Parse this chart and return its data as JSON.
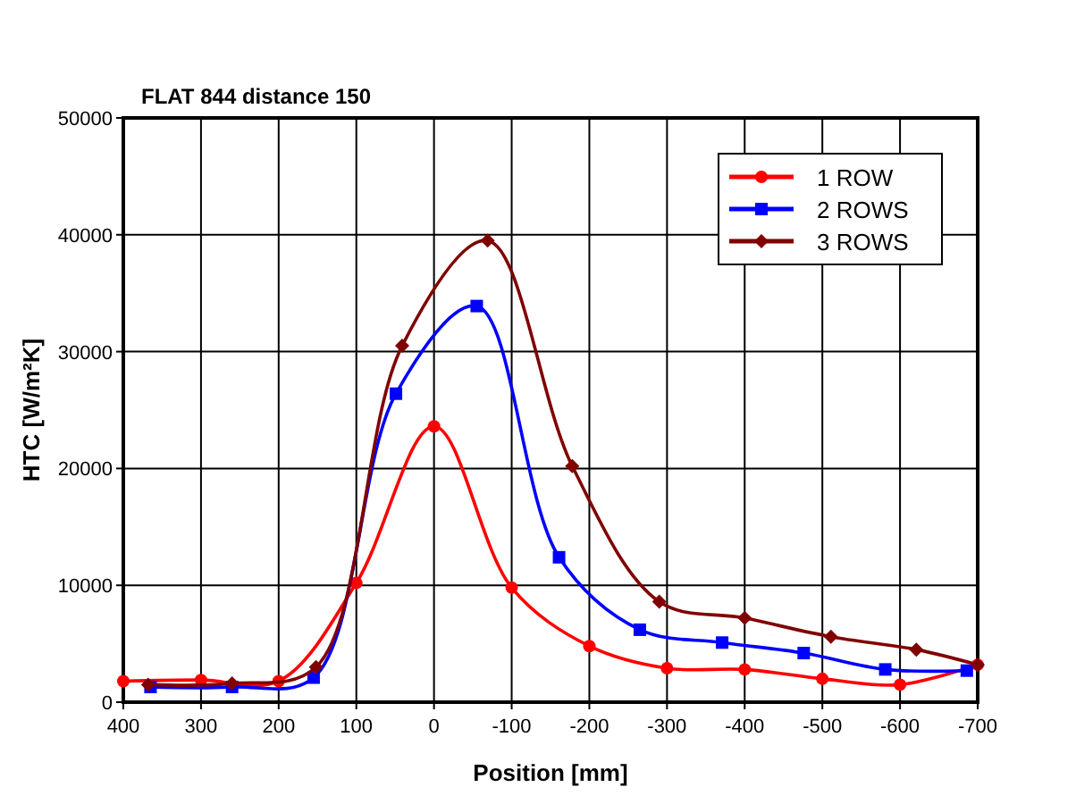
{
  "chart_data": {
    "type": "line",
    "title": "FLAT 844 distance 150",
    "xlabel": "Position [mm]",
    "ylabel": "HTC [W/m²K]",
    "xlim": [
      400,
      -700
    ],
    "xticks": [
      400,
      300,
      200,
      100,
      0,
      -100,
      -200,
      -300,
      -400,
      -500,
      -600,
      -700
    ],
    "ylim": [
      0,
      50000
    ],
    "yticks": [
      0,
      10000,
      20000,
      30000,
      40000,
      50000
    ],
    "grid": true,
    "legend": "top right",
    "series": [
      {
        "name": "1 ROW",
        "color": "#ff0000",
        "marker": "circle",
        "x": [
          400,
          300,
          200,
          100,
          0,
          -100,
          -200,
          -300,
          -400,
          -500,
          -600,
          -700
        ],
        "values": [
          1800,
          1900,
          1800,
          10200,
          23600,
          9800,
          4800,
          2900,
          2800,
          2000,
          1500,
          3200
        ]
      },
      {
        "name": "2 ROWS",
        "color": "#0000ff",
        "marker": "square",
        "x": [
          365,
          260,
          155,
          49,
          -55,
          -161,
          -265,
          -371,
          -476,
          -581,
          -686
        ],
        "values": [
          1300,
          1300,
          2100,
          26400,
          33900,
          12400,
          6200,
          5100,
          4200,
          2800,
          2700
        ]
      },
      {
        "name": "3 ROWS",
        "color": "#800000",
        "marker": "diamond",
        "x": [
          368,
          260,
          152,
          41,
          -69,
          -178,
          -290,
          -400,
          -511,
          -621,
          -700
        ],
        "values": [
          1500,
          1600,
          3000,
          30500,
          39500,
          20200,
          8600,
          7200,
          5600,
          4500,
          3200
        ]
      }
    ]
  }
}
